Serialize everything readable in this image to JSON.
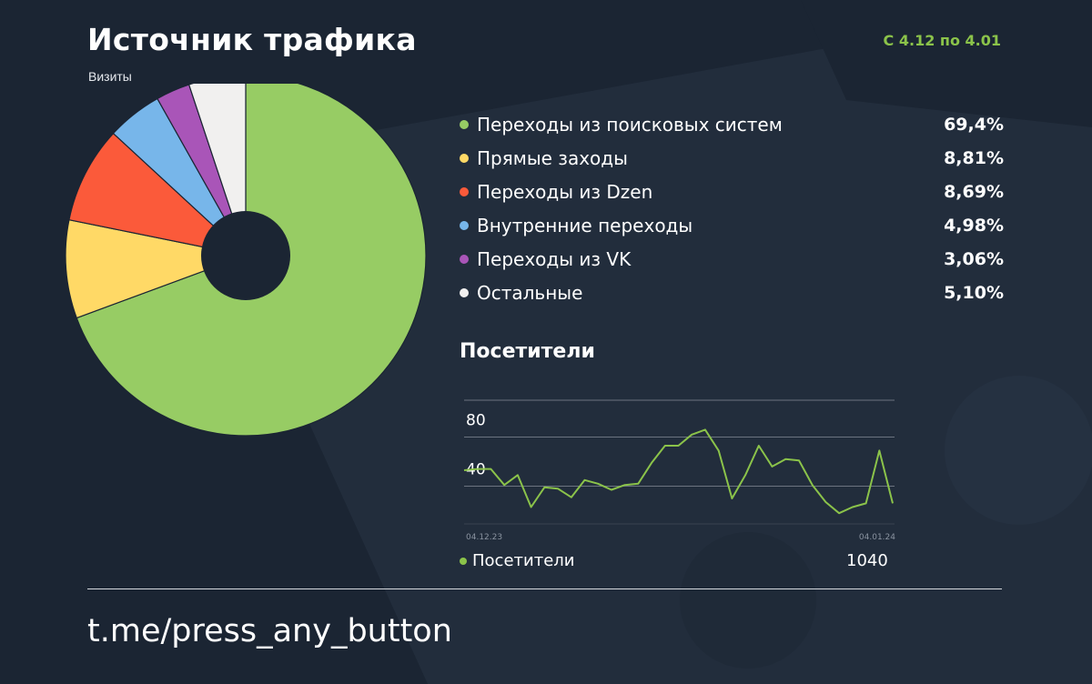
{
  "header": {
    "title": "Источник трафика",
    "subtitle": "Визиты",
    "period": "С 4.12 по 4.01"
  },
  "chart_data": [
    {
      "type": "pie",
      "title": "Источник трафика",
      "subtitle": "Визиты",
      "legend_position": "right",
      "slices": [
        {
          "label": "Переходы из поисковых систем",
          "value": 69.4,
          "display": "69,4%",
          "color": "#97cc64"
        },
        {
          "label": "Прямые заходы",
          "value": 8.81,
          "display": "8,81%",
          "color": "#ffd966"
        },
        {
          "label": "Переходы из Dzen",
          "value": 8.69,
          "display": "8,69%",
          "color": "#fb5a3a"
        },
        {
          "label": "Внутренние переходы",
          "value": 4.98,
          "display": "4,98%",
          "color": "#77b6ea"
        },
        {
          "label": "Переходы из VK",
          "value": 3.06,
          "display": "3,06%",
          "color": "#a955b8"
        },
        {
          "label": "Остальные",
          "value": 5.1,
          "display": "5,10%",
          "color": "#f1f0ef"
        }
      ]
    },
    {
      "type": "line",
      "title": "Посетители",
      "x_start_label": "04.12.23",
      "x_end_label": "04.01.24",
      "y_ticks": [
        {
          "value": 80,
          "label": "80"
        },
        {
          "value": 40,
          "label": "40"
        }
      ],
      "ylim": [
        10,
        110
      ],
      "grid": true,
      "series": [
        {
          "name": "Посетители",
          "color": "#8bc34a",
          "total": "1040",
          "values": [
            53,
            54,
            54,
            41,
            49,
            23,
            39,
            38,
            31,
            45,
            42,
            37,
            41,
            42,
            59,
            73,
            73,
            82,
            86,
            69,
            30,
            49,
            73,
            56,
            62,
            61,
            41,
            27,
            18,
            23,
            26,
            69,
            26
          ]
        }
      ]
    }
  ],
  "footer": {
    "link": "t.me/press_any_button"
  }
}
